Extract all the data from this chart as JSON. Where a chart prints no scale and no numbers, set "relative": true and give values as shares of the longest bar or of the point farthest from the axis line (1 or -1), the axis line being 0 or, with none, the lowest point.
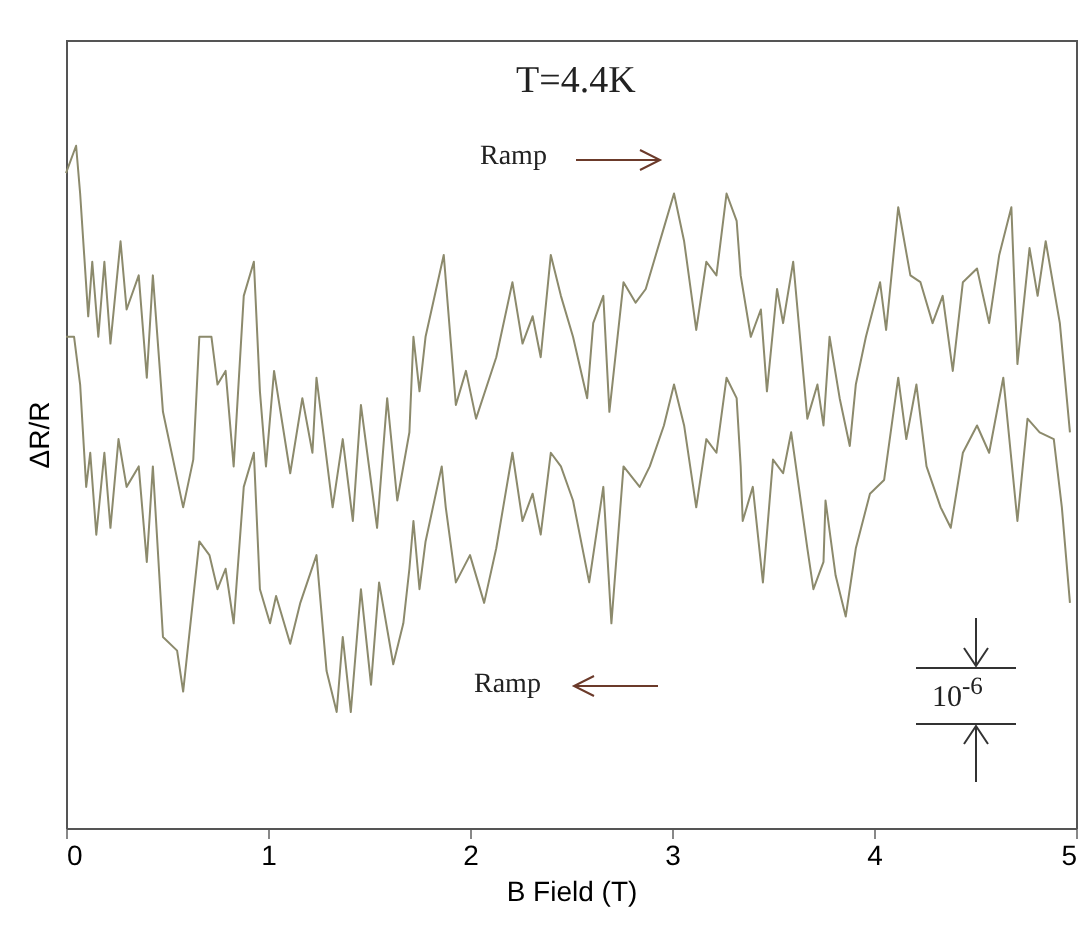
{
  "chart_data": {
    "type": "line",
    "relative": true,
    "xlabel": "B Field (T)",
    "ylabel": "ΔR/R",
    "xlim": [
      0,
      5
    ],
    "xticks": [
      0,
      1,
      2,
      3,
      4,
      5
    ],
    "tick_labels": "x",
    "grid": false,
    "legend": false,
    "marker": "none",
    "line_style": "solid",
    "annotations": [
      "T=4.4K",
      "Ramp",
      "Ramp",
      "10$^{-6}$"
    ],
    "series": [
      {
        "color": "#8c8a6c",
        "x": [
          0,
          0.05,
          0.07,
          0.11,
          0.13,
          0.16,
          0.19,
          0.22,
          0.27,
          0.3,
          0.36,
          0.4,
          0.43,
          0.48,
          0.58,
          0.63,
          0.66,
          0.72,
          0.75,
          0.79,
          0.83,
          0.88,
          0.93,
          0.96,
          0.99,
          1.03,
          1.11,
          1.17,
          1.22,
          1.24,
          1.32,
          1.37,
          1.42,
          1.46,
          1.54,
          1.59,
          1.64,
          1.7,
          1.72,
          1.75,
          1.78,
          1.87,
          1.93,
          1.98,
          2.03,
          2.13,
          2.21,
          2.26,
          2.31,
          2.35,
          2.4,
          2.45,
          2.51,
          2.58,
          2.61,
          2.66,
          2.69,
          2.76,
          2.82,
          2.87,
          2.96,
          3.01,
          3.06,
          3.12,
          3.17,
          3.22,
          3.27,
          3.32,
          3.34,
          3.39,
          3.44,
          3.47,
          3.52,
          3.55,
          3.6,
          3.67,
          3.72,
          3.75,
          3.78,
          3.83,
          3.88,
          3.91,
          3.96,
          4.03,
          4.06,
          4.12,
          4.18,
          4.23,
          4.29,
          4.34,
          4.39,
          4.44,
          4.51,
          4.57,
          4.62,
          4.68,
          4.71,
          4.77,
          4.81,
          4.85,
          4.92,
          4.97
        ],
        "values": [
          0.96,
          1,
          0.93,
          0.75,
          0.83,
          0.72,
          0.83,
          0.71,
          0.86,
          0.76,
          0.81,
          0.66,
          0.81,
          0.61,
          0.47,
          0.54,
          0.72,
          0.72,
          0.65,
          0.67,
          0.53,
          0.78,
          0.83,
          0.64,
          0.53,
          0.67,
          0.52,
          0.63,
          0.55,
          0.66,
          0.47,
          0.57,
          0.45,
          0.62,
          0.44,
          0.63,
          0.48,
          0.58,
          0.72,
          0.64,
          0.72,
          0.84,
          0.62,
          0.67,
          0.6,
          0.69,
          0.8,
          0.71,
          0.75,
          0.69,
          0.84,
          0.78,
          0.72,
          0.63,
          0.74,
          0.78,
          0.61,
          0.8,
          0.77,
          0.79,
          0.88,
          0.93,
          0.86,
          0.73,
          0.83,
          0.81,
          0.93,
          0.89,
          0.81,
          0.72,
          0.76,
          0.64,
          0.79,
          0.74,
          0.83,
          0.6,
          0.65,
          0.59,
          0.72,
          0.63,
          0.56,
          0.65,
          0.72,
          0.8,
          0.73,
          0.91,
          0.81,
          0.8,
          0.74,
          0.78,
          0.67,
          0.8,
          0.82,
          0.74,
          0.84,
          0.91,
          0.68,
          0.85,
          0.78,
          0.86,
          0.74,
          0.58
        ]
      },
      {
        "color": "#8c8a6c",
        "x": [
          0,
          0.04,
          0.07,
          0.1,
          0.12,
          0.15,
          0.19,
          0.22,
          0.26,
          0.3,
          0.36,
          0.4,
          0.43,
          0.48,
          0.55,
          0.58,
          0.66,
          0.71,
          0.75,
          0.79,
          0.83,
          0.88,
          0.93,
          0.96,
          1.01,
          1.04,
          1.11,
          1.16,
          1.24,
          1.29,
          1.34,
          1.37,
          1.41,
          1.46,
          1.51,
          1.55,
          1.62,
          1.67,
          1.7,
          1.72,
          1.75,
          1.78,
          1.86,
          1.88,
          1.93,
          2,
          2.07,
          2.13,
          2.21,
          2.26,
          2.31,
          2.35,
          2.4,
          2.45,
          2.51,
          2.59,
          2.63,
          2.66,
          2.7,
          2.76,
          2.84,
          2.89,
          2.96,
          3.01,
          3.06,
          3.12,
          3.17,
          3.22,
          3.27,
          3.32,
          3.34,
          3.35,
          3.4,
          3.45,
          3.5,
          3.55,
          3.59,
          3.67,
          3.7,
          3.75,
          3.76,
          3.81,
          3.86,
          3.91,
          3.98,
          4.05,
          4.12,
          4.16,
          4.21,
          4.26,
          4.33,
          4.38,
          4.44,
          4.51,
          4.57,
          4.64,
          4.71,
          4.76,
          4.82,
          4.89,
          4.93,
          4.97
        ],
        "values": [
          0.72,
          0.72,
          0.65,
          0.5,
          0.55,
          0.43,
          0.55,
          0.44,
          0.57,
          0.5,
          0.53,
          0.39,
          0.53,
          0.28,
          0.26,
          0.2,
          0.42,
          0.4,
          0.35,
          0.38,
          0.3,
          0.5,
          0.55,
          0.35,
          0.3,
          0.34,
          0.27,
          0.33,
          0.4,
          0.23,
          0.17,
          0.28,
          0.17,
          0.35,
          0.21,
          0.36,
          0.24,
          0.3,
          0.38,
          0.45,
          0.35,
          0.42,
          0.53,
          0.47,
          0.36,
          0.4,
          0.33,
          0.41,
          0.55,
          0.45,
          0.49,
          0.43,
          0.55,
          0.53,
          0.48,
          0.36,
          0.44,
          0.5,
          0.3,
          0.53,
          0.5,
          0.53,
          0.59,
          0.65,
          0.59,
          0.47,
          0.57,
          0.55,
          0.66,
          0.63,
          0.53,
          0.45,
          0.5,
          0.36,
          0.54,
          0.52,
          0.58,
          0.41,
          0.35,
          0.39,
          0.48,
          0.37,
          0.31,
          0.41,
          0.49,
          0.51,
          0.66,
          0.57,
          0.65,
          0.53,
          0.47,
          0.44,
          0.55,
          0.59,
          0.55,
          0.66,
          0.45,
          0.6,
          0.58,
          0.57,
          0.47,
          0.33
        ]
      }
    ]
  }
}
